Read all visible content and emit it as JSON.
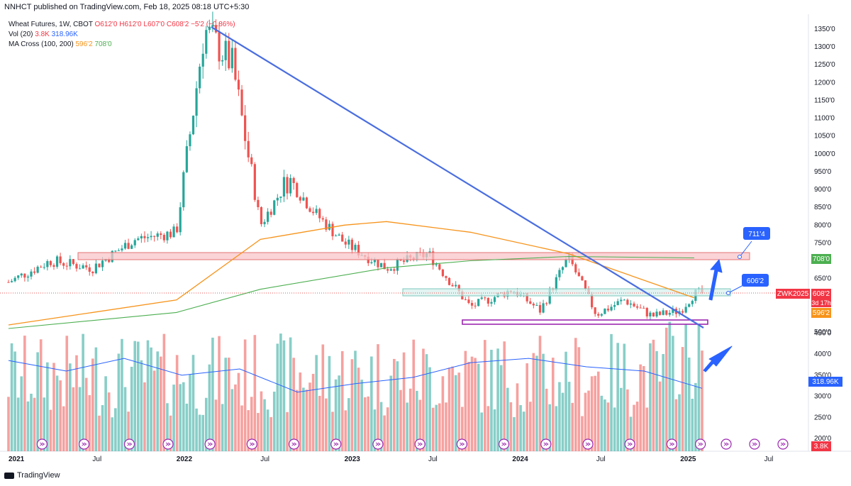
{
  "header": {
    "published": "NNHCT published on TradingView.com, Feb 18, 2025 08:18 UTC+5:30"
  },
  "legend": {
    "symbol": "Wheat Futures, 1W, CBOT",
    "ohlc": "O612'0  H612'0  L607'0  C608'2",
    "change": "−5'2 (−0.86%)",
    "vol_label": "Vol (20)",
    "vol_value": "3.8K",
    "vol_ma": "318.96K",
    "ma_label": "MA Cross (100, 200)",
    "ma_fast": "596'2",
    "ma_slow": "708'0"
  },
  "footer": {
    "brand": "TradingView"
  },
  "colors": {
    "up": "#26a69a",
    "down": "#ef5350",
    "ma100": "#f7931a",
    "ma200": "#4caf50",
    "trendline": "#4a6ee0",
    "resistance_fill": "#f8c5c9",
    "resistance_stroke": "#e57373",
    "support_fill": "#d6f0ec",
    "support_stroke": "#7ec9be",
    "base_stroke": "#9c27b0",
    "arrow": "#2962ff"
  },
  "icons": {
    "event_marker": "dividend-arrow-circle-icon",
    "logo": "tradingview-logo-icon"
  },
  "annotations": {
    "target_upper": "711'4",
    "target_lower": "606'2"
  },
  "price_tags": {
    "ma200": "708'0",
    "symbol": "ZWK2025",
    "last": "608'2",
    "countdown": "3d 17h",
    "ma100": "596'2",
    "vol_ma": "318.96K",
    "vol": "3.8K"
  },
  "chart_data": {
    "type": "candlestick",
    "title": "Wheat Futures, 1W, CBOT",
    "price_axis_ticks": [
      "1350'0",
      "1300'0",
      "1250'0",
      "1200'0",
      "1150'0",
      "1100'0",
      "1050'0",
      "1000'0",
      "950'0",
      "900'0",
      "850'0",
      "800'0",
      "750'0",
      "650'0",
      "500'0"
    ],
    "volume_axis_ticks": [
      "450'0",
      "400'0",
      "350'0",
      "300'0",
      "250'0",
      "200'0"
    ],
    "time_axis_ticks": [
      "2021",
      "Jul",
      "2022",
      "Jul",
      "2023",
      "Jul",
      "2024",
      "Jul",
      "2025",
      "Jul"
    ],
    "ylim": [
      500,
      1360
    ],
    "series": [
      {
        "name": "Wheat Futures",
        "kind": "weekly_close_path",
        "x": [
          "2021-01",
          "2021-04",
          "2021-07",
          "2021-10",
          "2022-01",
          "2022-03",
          "2022-05",
          "2022-07",
          "2022-09",
          "2022-11",
          "2023-01",
          "2023-04",
          "2023-07",
          "2023-10",
          "2024-01",
          "2024-03",
          "2024-05",
          "2024-07",
          "2024-09",
          "2024-11",
          "2025-01",
          "2025-02"
        ],
        "y": [
          640,
          700,
          680,
          760,
          780,
          1350,
          1250,
          800,
          930,
          830,
          750,
          680,
          720,
          570,
          620,
          560,
          710,
          550,
          590,
          545,
          560,
          608
        ]
      },
      {
        "name": "MA 100",
        "x": [
          "2021-01",
          "2022-01",
          "2022-07",
          "2023-01",
          "2023-04",
          "2023-10",
          "2024-05",
          "2025-02"
        ],
        "y": [
          520,
          590,
          760,
          800,
          810,
          780,
          720,
          596
        ]
      },
      {
        "name": "MA 200",
        "x": [
          "2021-01",
          "2022-01",
          "2022-07",
          "2023-04",
          "2023-10",
          "2024-05",
          "2025-02"
        ],
        "y": [
          510,
          555,
          620,
          680,
          700,
          712,
          708
        ]
      },
      {
        "name": "Vol (20)",
        "kind": "volume_ma",
        "y": [
          385,
          360,
          390,
          350,
          365,
          310,
          330,
          345,
          380,
          390,
          370,
          360,
          318.96
        ]
      }
    ],
    "levels": {
      "resistance_zone": [
        700,
        720
      ],
      "support_zone": [
        600,
        612
      ],
      "base_line": 525,
      "trendline": {
        "from": [
          "2022-03",
          1350
        ],
        "to": [
          "2025-02",
          510
        ]
      }
    },
    "grid": false,
    "legend_position": "top-left"
  }
}
